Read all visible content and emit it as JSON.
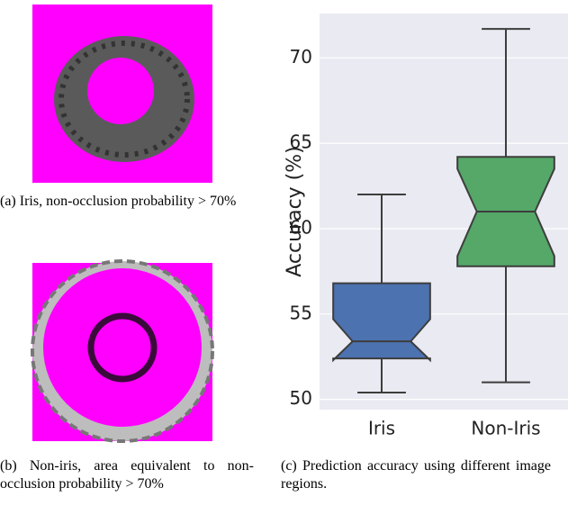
{
  "captions": {
    "a": "(a) Iris, non-occlusion probability > 70%",
    "b": "(b) Non-iris, area equivalent to non-occlusion probability > 70%",
    "c": "(c) Prediction accuracy using different image regions."
  },
  "chart_data": {
    "type": "box",
    "ylabel": "Accuracy (%)",
    "categories": [
      "Iris",
      "Non-Iris"
    ],
    "boxes": [
      {
        "whislo": 50.4,
        "q1": 52.4,
        "med": 53.4,
        "q3": 56.8,
        "whishi": 62.0,
        "notch": [
          52.3,
          54.7
        ],
        "color": "#4c72b0"
      },
      {
        "whislo": 51.0,
        "q1": 57.8,
        "med": 61.0,
        "q3": 64.2,
        "whishi": 71.7,
        "notch": [
          58.4,
          63.5
        ],
        "color": "#55a868"
      }
    ],
    "ylim": [
      49.4,
      72.6
    ],
    "yticks": [
      50,
      55,
      60,
      65,
      70
    ],
    "grid": true
  }
}
